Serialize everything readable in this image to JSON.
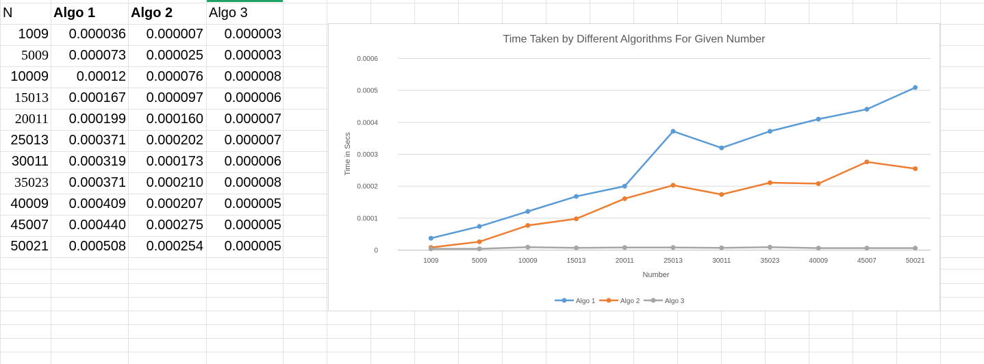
{
  "sheet": {
    "headers": [
      "N",
      "Algo 1",
      "Algo 2",
      "Algo 3"
    ],
    "rows": [
      [
        "1009",
        "0.000036",
        "0.000007",
        "0.000003"
      ],
      [
        "5009",
        "0.000073",
        "0.000025",
        "0.000003"
      ],
      [
        "10009",
        "0.00012",
        "0.000076",
        "0.000008"
      ],
      [
        "15013",
        "0.000167",
        "0.000097",
        "0.000006"
      ],
      [
        "20011",
        "0.000199",
        "0.000160",
        "0.000007"
      ],
      [
        "25013",
        "0.000371",
        "0.000202",
        "0.000007"
      ],
      [
        "30011",
        "0.000319",
        "0.000173",
        "0.000006"
      ],
      [
        "35023",
        "0.000371",
        "0.000210",
        "0.000008"
      ],
      [
        "40009",
        "0.000409",
        "0.000207",
        "0.000005"
      ],
      [
        "45007",
        "0.000440",
        "0.000275",
        "0.000005"
      ],
      [
        "50021",
        "0.000508",
        "0.000254",
        "0.000005"
      ]
    ]
  },
  "chart_data": {
    "type": "line",
    "title": "Time Taken by Different Algorithms For Given Number",
    "xlabel": "Number",
    "ylabel": "Time in Secs",
    "categories": [
      "1009",
      "5009",
      "10009",
      "15013",
      "20011",
      "25013",
      "30011",
      "35023",
      "40009",
      "45007",
      "50021"
    ],
    "yticks": [
      "0",
      "0.0001",
      "0.0002",
      "0.0003",
      "0.0004",
      "0.0005",
      "0.0006"
    ],
    "ylim": [
      0,
      0.0006
    ],
    "grid": true,
    "legend": "bottom",
    "series": [
      {
        "name": "Algo 1",
        "color": "#5b9bd5",
        "values": [
          3.6e-05,
          7.3e-05,
          0.00012,
          0.000167,
          0.000199,
          0.000371,
          0.000319,
          0.000371,
          0.000409,
          0.00044,
          0.000508
        ]
      },
      {
        "name": "Algo 2",
        "color": "#ed7d31",
        "values": [
          7e-06,
          2.5e-05,
          7.6e-05,
          9.7e-05,
          0.00016,
          0.000202,
          0.000173,
          0.00021,
          0.000207,
          0.000275,
          0.000254
        ]
      },
      {
        "name": "Algo 3",
        "color": "#a5a5a5",
        "values": [
          3e-06,
          3e-06,
          8e-06,
          6e-06,
          7e-06,
          7e-06,
          6e-06,
          8e-06,
          5e-06,
          5e-06,
          5e-06
        ]
      }
    ]
  }
}
